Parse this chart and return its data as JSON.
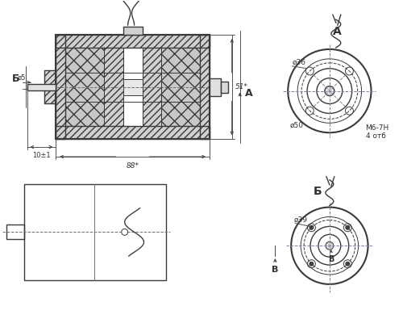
{
  "bg_color": "#ffffff",
  "line_color": "#3a3a3a",
  "figsize": [
    5.0,
    3.95
  ],
  "dpi": 100,
  "labels": {
    "A_label": "А",
    "B_label": "Б",
    "V_label": "В",
    "dim_88": "88*",
    "dim_51": "51*",
    "dim_10": "10±1",
    "dim_phi5": "ø5",
    "dim_phi36": "ø36",
    "dim_phi50": "ø50",
    "dim_phi39": "ø39",
    "dim_M6": "М6-7Н",
    "dim_4otv": "4 отб"
  }
}
